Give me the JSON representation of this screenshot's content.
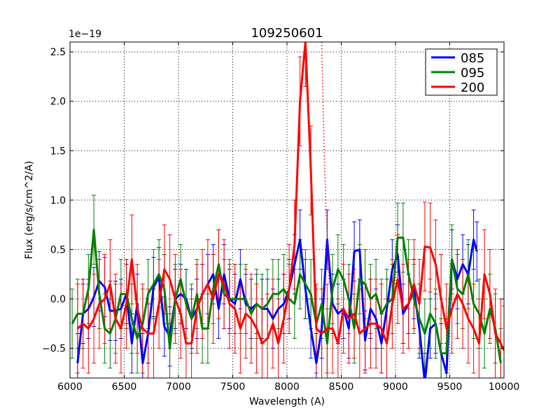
{
  "chart_data": {
    "type": "line",
    "title": "109250601",
    "xlabel": "Wavelength (A)",
    "ylabel": "Flux (erg/s/cm^2/A)",
    "offset_label": "1e−19",
    "xlim": [
      6000,
      10000
    ],
    "ylim": [
      -0.8,
      2.6
    ],
    "xticks": [
      6000,
      6500,
      7000,
      7500,
      8000,
      8500,
      9000,
      9500,
      10000
    ],
    "xtick_labels": [
      "6000",
      "6500",
      "7000",
      "7500",
      "8000",
      "8500",
      "9000",
      "9500",
      "10000"
    ],
    "yticks": [
      -0.5,
      0.0,
      0.5,
      1.0,
      1.5,
      2.0,
      2.5
    ],
    "ytick_labels": [
      "−0.5",
      "0.0",
      "0.5",
      "1.0",
      "1.5",
      "2.0",
      "2.5"
    ],
    "grid": true,
    "legend_position": "top-right",
    "series": [
      {
        "name": "085",
        "color": "#0000ff",
        "x": [
          6070,
          6120,
          6170,
          6220,
          6270,
          6320,
          6370,
          6420,
          6470,
          6520,
          6570,
          6620,
          6670,
          6720,
          6770,
          6820,
          6870,
          6920,
          6970,
          7020,
          7070,
          7120,
          7170,
          7220,
          7270,
          7320,
          7370,
          7420,
          7470,
          7520,
          7570,
          7620,
          7670,
          7720,
          7770,
          7820,
          7870,
          7920,
          7970,
          8020,
          8070,
          8120,
          8170,
          8220,
          8270,
          8320,
          8370,
          8420,
          8470,
          8520,
          8570,
          8620,
          8670,
          8720,
          8770,
          8820,
          8870,
          8920,
          8970,
          9020,
          9070,
          9120,
          9170,
          9220,
          9270,
          9320,
          9370,
          9420,
          9470,
          9520,
          9570,
          9620,
          9670,
          9720,
          9750
        ],
        "y": [
          -0.65,
          -0.15,
          -0.1,
          0.02,
          0.18,
          0.12,
          -0.12,
          -0.12,
          -0.1,
          0.05,
          -0.45,
          -0.05,
          -0.65,
          -0.35,
          0.12,
          0.22,
          -0.28,
          -0.38,
          0.0,
          0.05,
          0.0,
          -0.2,
          -0.1,
          0.05,
          0.15,
          0.25,
          -0.1,
          0.25,
          0.0,
          -0.05,
          0.2,
          -0.05,
          -0.1,
          -0.05,
          -0.1,
          -0.1,
          -0.2,
          -0.1,
          -0.05,
          0.1,
          0.35,
          0.6,
          0.1,
          -0.3,
          -0.65,
          -0.3,
          0.6,
          -0.05,
          -0.15,
          -0.1,
          -0.3,
          0.48,
          0.5,
          -0.42,
          -0.1,
          -0.2,
          -0.45,
          -0.1,
          0.3,
          0.45,
          -0.15,
          -0.05,
          0.1,
          -0.3,
          -0.85,
          -0.3,
          -0.25,
          -0.55,
          -0.75,
          0.4,
          0.2,
          0.35,
          0.25,
          0.6,
          0.48
        ],
        "error": 0.3
      },
      {
        "name": "095",
        "color": "#008000",
        "x": [
          6020,
          6070,
          6120,
          6170,
          6220,
          6270,
          6320,
          6370,
          6420,
          6470,
          6520,
          6570,
          6620,
          6670,
          6720,
          6770,
          6820,
          6870,
          6920,
          6970,
          7020,
          7070,
          7120,
          7170,
          7220,
          7270,
          7320,
          7370,
          7420,
          7470,
          7520,
          7570,
          7620,
          7670,
          7720,
          7770,
          7820,
          7870,
          7920,
          7970,
          8020,
          8070,
          8120,
          8170,
          8220,
          8270,
          8320,
          8370,
          8420,
          8470,
          8520,
          8570,
          8620,
          8670,
          8720,
          8770,
          8820,
          8870,
          8920,
          8970,
          9020,
          9070,
          9120,
          9170,
          9220,
          9270,
          9320,
          9370,
          9420,
          9470,
          9520,
          9570,
          9620,
          9670,
          9720,
          9770,
          9820,
          9870,
          9920,
          9970
        ],
        "y": [
          -0.25,
          -0.15,
          -0.15,
          0.1,
          0.7,
          0.05,
          -0.3,
          -0.35,
          -0.2,
          0.05,
          0.05,
          -0.2,
          -0.4,
          -0.25,
          0.05,
          0.15,
          0.25,
          0.1,
          -0.5,
          0.0,
          0.2,
          -0.05,
          -0.2,
          0.05,
          -0.3,
          -0.3,
          0.1,
          0.35,
          0.05,
          0.0,
          0.0,
          0.0,
          0.0,
          -0.15,
          -0.05,
          -0.1,
          -0.05,
          0.05,
          0.05,
          0.1,
          0.0,
          -0.05,
          0.25,
          0.15,
          0.05,
          -0.25,
          -0.05,
          -0.45,
          0.1,
          0.3,
          0.2,
          0.0,
          -0.3,
          0.2,
          0.15,
          0.0,
          0.05,
          -0.15,
          -0.05,
          0.0,
          0.62,
          0.62,
          0.25,
          0.0,
          -0.2,
          -0.35,
          -0.15,
          -0.25,
          -0.55,
          -0.55,
          0.4,
          0.1,
          0.05,
          0.25,
          -0.05,
          -0.15,
          -0.35,
          -0.1,
          -0.3,
          -0.65
        ],
        "error": 0.35
      },
      {
        "name": "200",
        "color": "#ff0000",
        "x": [
          6070,
          6120,
          6170,
          6220,
          6270,
          6320,
          6370,
          6420,
          6470,
          6520,
          6570,
          6620,
          6670,
          6720,
          6770,
          6820,
          6870,
          6920,
          6970,
          7020,
          7070,
          7120,
          7170,
          7220,
          7270,
          7320,
          7370,
          7420,
          7470,
          7520,
          7570,
          7620,
          7670,
          7720,
          7770,
          7820,
          7870,
          7920,
          7970,
          8020,
          8070,
          8120,
          8170,
          8220,
          8270,
          8320,
          8370,
          8420,
          8470,
          8520,
          8570,
          8620,
          8670,
          8720,
          8770,
          8820,
          8870,
          8920,
          8970,
          9020,
          9070,
          9120,
          9170,
          9220,
          9270,
          9320,
          9370,
          9420,
          9470,
          9520,
          9570,
          9620,
          9670,
          9720,
          9770,
          9820,
          9870,
          9920,
          9970,
          10000
        ],
        "y": [
          -0.3,
          -0.25,
          -0.3,
          -0.2,
          -0.05,
          0.0,
          0.15,
          -0.2,
          -0.3,
          -0.05,
          0.4,
          -0.1,
          -0.3,
          -0.35,
          -0.35,
          -0.05,
          0.3,
          0.2,
          0.0,
          -0.15,
          -0.45,
          -0.45,
          -0.1,
          0.05,
          0.15,
          0.0,
          0.25,
          0.15,
          -0.05,
          -0.1,
          -0.3,
          -0.15,
          -0.2,
          -0.3,
          -0.45,
          -0.4,
          -0.25,
          -0.45,
          -0.2,
          0.1,
          0.55,
          2.0,
          2.6,
          1.3,
          -0.3,
          -0.35,
          -0.3,
          -0.3,
          -0.45,
          -0.1,
          -0.2,
          -0.15,
          -0.35,
          -0.3,
          -0.25,
          -0.25,
          -0.3,
          -0.45,
          -0.05,
          0.2,
          -0.1,
          -0.05,
          0.15,
          -0.05,
          0.53,
          0.52,
          0.35,
          0.0,
          -0.3,
          -0.1,
          0.05,
          -0.05,
          -0.2,
          -0.3,
          -0.45,
          0.25,
          0.05,
          -0.35,
          -0.45,
          -0.52
        ],
        "error": 0.45
      }
    ],
    "extra_lines": [
      {
        "color": "#ff0000",
        "style": "dotted",
        "x": [
          8320,
          8340,
          8360,
          8390
        ],
        "y": [
          2.6,
          1.6,
          0.9,
          0.15
        ]
      }
    ]
  }
}
